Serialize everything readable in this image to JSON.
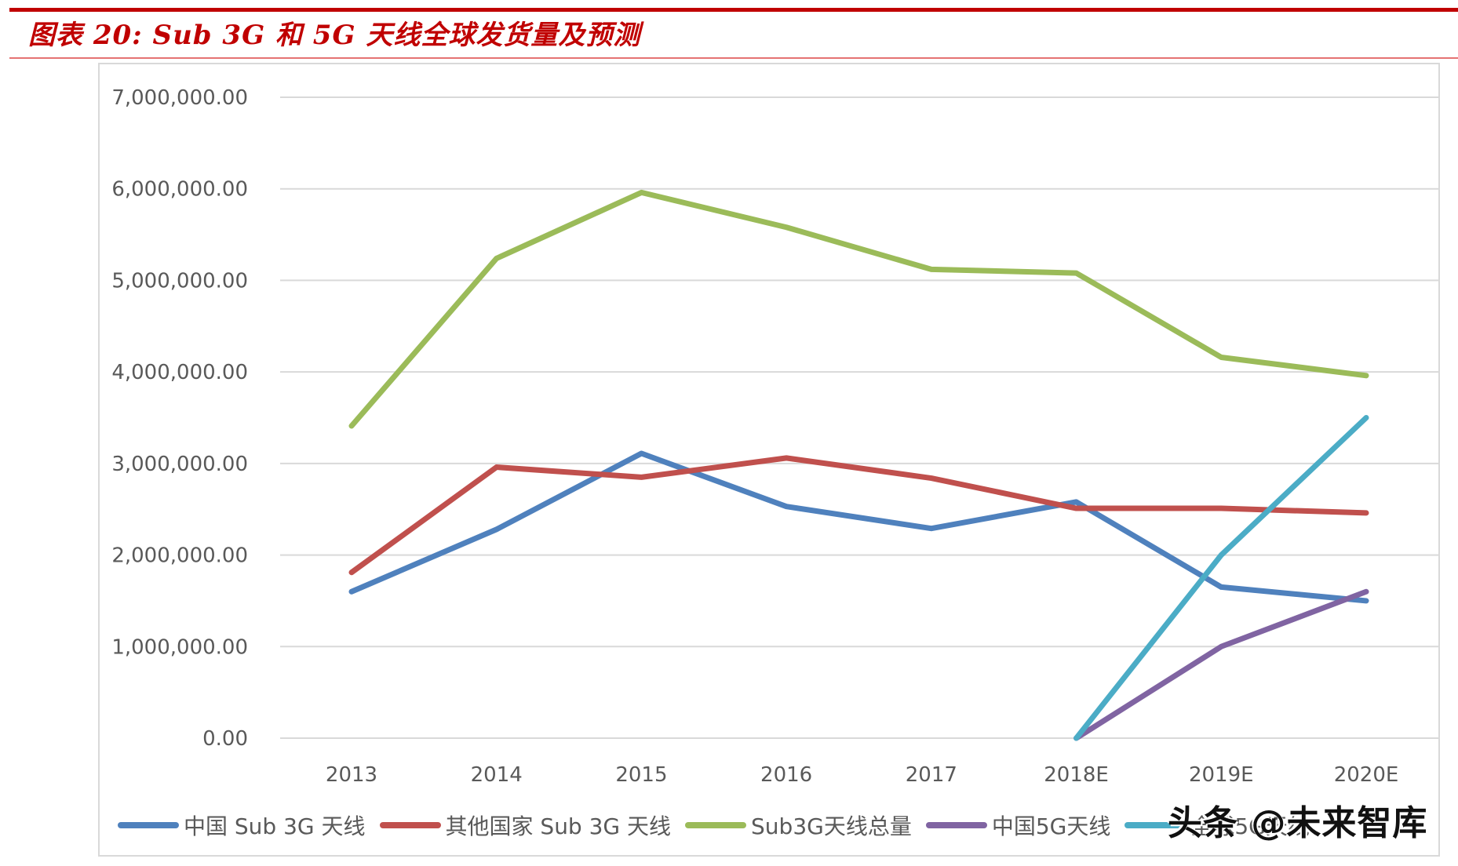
{
  "header": {
    "title": "图表 20:  Sub 3G  和 5G 天线全球发货量及预测"
  },
  "watermark": "头条 @未来智库",
  "colors": {
    "title_red": "#c00000",
    "grid": "#d9d9d9",
    "axis_text": "#595959"
  },
  "chart_data": {
    "type": "line",
    "title": "图表 20: Sub 3G 和 5G 天线全球发货量及预测",
    "xlabel": "",
    "ylabel": "",
    "categories": [
      "2013",
      "2014",
      "2015",
      "2016",
      "2017",
      "2018E",
      "2019E",
      "2020E"
    ],
    "ylim": [
      0,
      7000000
    ],
    "yticks": [
      0,
      1000000,
      2000000,
      3000000,
      4000000,
      5000000,
      6000000,
      7000000
    ],
    "ytick_labels": [
      "0.00",
      "1,000,000.00",
      "2,000,000.00",
      "3,000,000.00",
      "4,000,000.00",
      "5,000,000.00",
      "6,000,000.00",
      "7,000,000.00"
    ],
    "grid": true,
    "legend_position": "bottom",
    "series": [
      {
        "name": "中国 Sub 3G 天线",
        "color": "#4f81bd",
        "values": [
          1600000,
          2280000,
          3110000,
          2530000,
          2290000,
          2580000,
          1650000,
          1500000
        ]
      },
      {
        "name": "其他国家 Sub 3G 天线",
        "color": "#c0504d",
        "values": [
          1810000,
          2960000,
          2850000,
          3060000,
          2840000,
          2510000,
          2510000,
          2460000
        ]
      },
      {
        "name": "Sub3G天线总量",
        "color": "#9bbb59",
        "values": [
          3410000,
          5240000,
          5960000,
          5580000,
          5120000,
          5080000,
          4160000,
          3960000
        ]
      },
      {
        "name": "中国5G天线",
        "color": "#8064a2",
        "values": [
          null,
          null,
          null,
          null,
          null,
          0,
          1000000,
          1600000
        ]
      },
      {
        "name": "全球5G天线",
        "color": "#4bacc6",
        "values": [
          null,
          null,
          null,
          null,
          null,
          0,
          2000000,
          3500000
        ]
      }
    ]
  }
}
